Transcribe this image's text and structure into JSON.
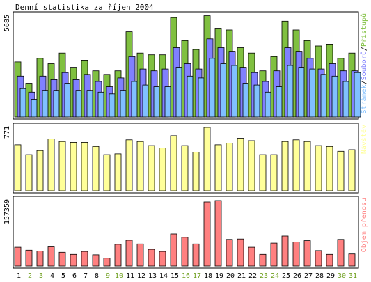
{
  "colors": {
    "hits": "#80c040",
    "files": "#8080ff",
    "pages": "#80c0ff",
    "visits": "#ffff99",
    "kbytes": "#ff8080",
    "weekday": "#000000",
    "weekend": "#70a020",
    "border": "#000000"
  },
  "chart_data": {
    "type": "bar",
    "title": "Denní statistika za říjen 2004",
    "days": [
      "1",
      "2",
      "3",
      "4",
      "5",
      "6",
      "7",
      "8",
      "9",
      "10",
      "11",
      "12",
      "13",
      "14",
      "15",
      "16",
      "17",
      "18",
      "19",
      "20",
      "21",
      "22",
      "23",
      "24",
      "25",
      "26",
      "27",
      "28",
      "29",
      "30",
      "31"
    ],
    "weekend_days": [
      "2",
      "3",
      "9",
      "10",
      "16",
      "17",
      "23",
      "24",
      "30",
      "31"
    ],
    "panels": [
      {
        "id": "hits-files-pages",
        "ymax_label": "5685",
        "ymax": 5685,
        "legend": [
          "Stránek",
          "/",
          "Souborů",
          "/",
          "Přístupů"
        ],
        "series": [
          {
            "name": "Přístupů",
            "color_key": "hits",
            "values": [
              3100,
              1900,
              3300,
              3000,
              3600,
              2800,
              3200,
              2600,
              2400,
              2600,
              4800,
              3600,
              3500,
              3500,
              5600,
              4300,
              3800,
              5700,
              5000,
              4900,
              3900,
              3600,
              2600,
              3400,
              5400,
              4900,
              4300,
              4000,
              4100,
              3300,
              3600
            ]
          },
          {
            "name": "Souborů",
            "color_key": "files",
            "values": [
              2300,
              1400,
              2300,
              2100,
              2500,
              2100,
              2400,
              2000,
              1700,
              2200,
              3400,
              2700,
              2600,
              2700,
              3900,
              3000,
              2700,
              4400,
              3900,
              3700,
              2800,
              2500,
              2000,
              2600,
              3900,
              3700,
              3300,
              2700,
              3000,
              2600,
              2600
            ]
          },
          {
            "name": "Stránek",
            "color_key": "pages",
            "values": [
              1600,
              1000,
              1500,
              1500,
              1900,
              1500,
              1500,
              1400,
              1300,
              1500,
              2000,
              1800,
              1700,
              1700,
              2800,
              2300,
              2200,
              3300,
              3000,
              2900,
              1900,
              1800,
              1400,
              1700,
              2900,
              2800,
              2700,
              2400,
              2300,
              2000,
              2500
            ]
          }
        ]
      },
      {
        "id": "visits",
        "ymax_label": "771",
        "ymax": 771,
        "legend": [
          "Návštěv"
        ],
        "series": [
          {
            "name": "Návštěv",
            "color_key": "visits",
            "values": [
              560,
              440,
              490,
              630,
              600,
              590,
              590,
              540,
              440,
              450,
              620,
              600,
              550,
              520,
              670,
              550,
              470,
              771,
              560,
              580,
              640,
              610,
              440,
              440,
              600,
              620,
              600,
              550,
              540,
              480,
              500
            ]
          }
        ]
      },
      {
        "id": "kbytes",
        "ymax_label": "157359",
        "ymax": 157359,
        "legend": [
          "Objem přenosu"
        ],
        "series": [
          {
            "name": "Objem přenosu",
            "color_key": "kbytes",
            "values": [
              45000,
              38000,
              36000,
              46000,
              33000,
              28000,
              35000,
              27000,
              19000,
              52000,
              62000,
              53000,
              40000,
              35000,
              77000,
              69000,
              53000,
              154000,
              157359,
              64000,
              65000,
              45000,
              28000,
              55000,
              72000,
              58000,
              61000,
              37000,
              28000,
              64000,
              29000
            ]
          }
        ]
      }
    ]
  }
}
